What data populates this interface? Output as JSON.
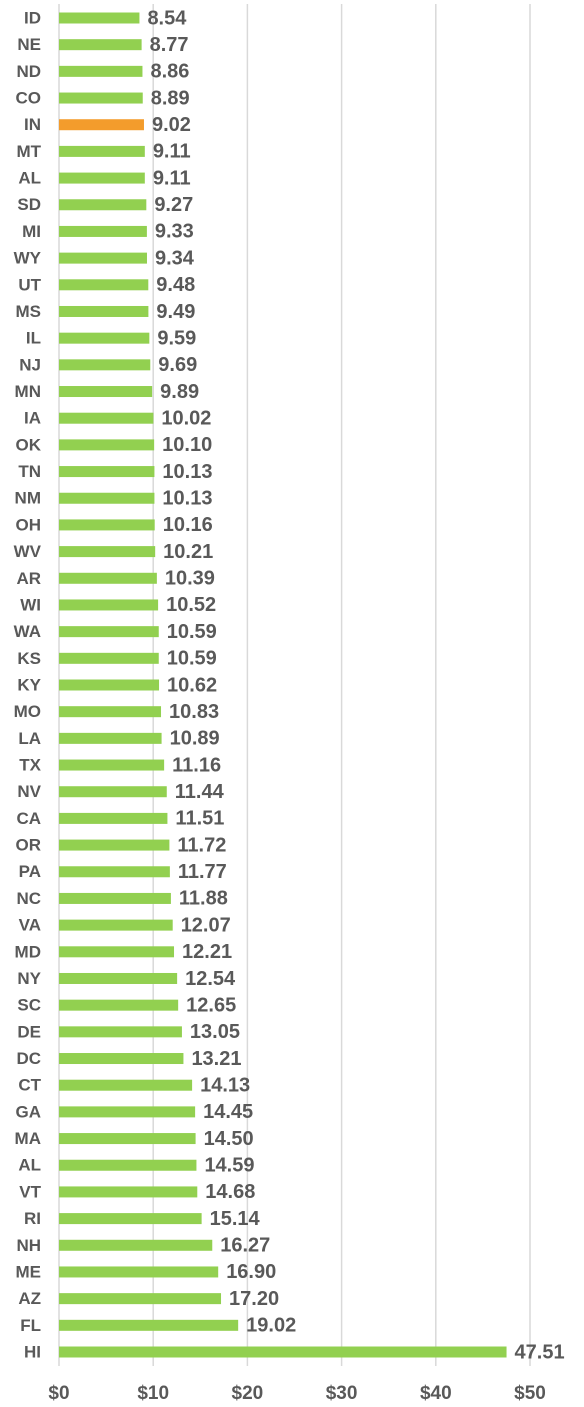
{
  "chart_data": {
    "type": "bar",
    "orientation": "horizontal",
    "categories": [
      "ID",
      "NE",
      "ND",
      "CO",
      "IN",
      "MT",
      "AL",
      "SD",
      "MI",
      "WY",
      "UT",
      "MS",
      "IL",
      "NJ",
      "MN",
      "IA",
      "OK",
      "TN",
      "NM",
      "OH",
      "WV",
      "AR",
      "WI",
      "WA",
      "KS",
      "KY",
      "MO",
      "LA",
      "TX",
      "NV",
      "CA",
      "OR",
      "PA",
      "NC",
      "VA",
      "MD",
      "NY",
      "SC",
      "DE",
      "DC",
      "CT",
      "GA",
      "MA",
      "AL",
      "VT",
      "RI",
      "NH",
      "ME",
      "AZ",
      "FL",
      "HI"
    ],
    "values": [
      8.54,
      8.77,
      8.86,
      8.89,
      9.02,
      9.11,
      9.11,
      9.27,
      9.33,
      9.34,
      9.48,
      9.49,
      9.59,
      9.69,
      9.89,
      10.02,
      10.1,
      10.13,
      10.13,
      10.16,
      10.21,
      10.39,
      10.52,
      10.59,
      10.59,
      10.62,
      10.83,
      10.89,
      11.16,
      11.44,
      11.51,
      11.72,
      11.77,
      11.88,
      12.07,
      12.21,
      12.54,
      12.65,
      13.05,
      13.21,
      14.13,
      14.45,
      14.5,
      14.59,
      14.68,
      15.14,
      16.27,
      16.9,
      17.2,
      19.02,
      47.51
    ],
    "value_labels": [
      "8.54",
      "8.77",
      "8.86",
      "8.89",
      "9.02",
      "9.11",
      "9.11",
      "9.27",
      "9.33",
      "9.34",
      "9.48",
      "9.49",
      "9.59",
      "9.69",
      "9.89",
      "10.02",
      "10.10",
      "10.13",
      "10.13",
      "10.16",
      "10.21",
      "10.39",
      "10.52",
      "10.59",
      "10.59",
      "10.62",
      "10.83",
      "10.89",
      "11.16",
      "11.44",
      "11.51",
      "11.72",
      "11.77",
      "11.88",
      "12.07",
      "12.21",
      "12.54",
      "12.65",
      "13.05",
      "13.21",
      "14.13",
      "14.45",
      "14.50",
      "14.59",
      "14.68",
      "15.14",
      "16.27",
      "16.90",
      "17.20",
      "19.02",
      "47.51"
    ],
    "colors": [
      "#92d050",
      "#92d050",
      "#92d050",
      "#92d050",
      "#f39c2c",
      "#92d050",
      "#92d050",
      "#92d050",
      "#92d050",
      "#92d050",
      "#92d050",
      "#92d050",
      "#92d050",
      "#92d050",
      "#92d050",
      "#92d050",
      "#92d050",
      "#92d050",
      "#92d050",
      "#92d050",
      "#92d050",
      "#92d050",
      "#92d050",
      "#92d050",
      "#92d050",
      "#92d050",
      "#92d050",
      "#92d050",
      "#92d050",
      "#92d050",
      "#92d050",
      "#92d050",
      "#92d050",
      "#92d050",
      "#92d050",
      "#92d050",
      "#92d050",
      "#92d050",
      "#92d050",
      "#92d050",
      "#92d050",
      "#92d050",
      "#92d050",
      "#92d050",
      "#92d050",
      "#92d050",
      "#92d050",
      "#92d050",
      "#92d050",
      "#92d050",
      "#92d050"
    ],
    "xlim": [
      0,
      50
    ],
    "xticks": [
      {
        "value": 0,
        "label": "$0"
      },
      {
        "value": 10,
        "label": "$10"
      },
      {
        "value": 20,
        "label": "$20"
      },
      {
        "value": 30,
        "label": "$30"
      },
      {
        "value": 40,
        "label": "$40"
      },
      {
        "value": 50,
        "label": "$50"
      }
    ],
    "grid": true
  }
}
